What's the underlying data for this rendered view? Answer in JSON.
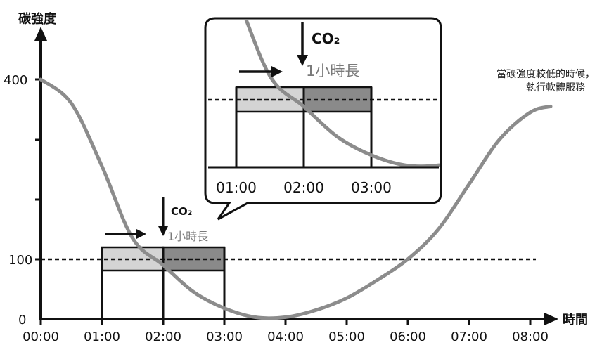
{
  "chart_data": {
    "type": "line",
    "ylabel": "碳強度",
    "xlabel": "時間",
    "y_ticks": [
      "400",
      "100",
      "0"
    ],
    "x_ticks": [
      "00:00",
      "01:00",
      "02:00",
      "03:00",
      "04:00",
      "05:00",
      "06:00",
      "07:00",
      "08:00"
    ],
    "threshold": 100,
    "series": [
      {
        "x": [
          "00:00",
          "00:30",
          "01:00",
          "01:30",
          "02:00",
          "02:30",
          "03:00",
          "03:30",
          "04:00",
          "04:30",
          "05:00",
          "05:30",
          "06:00",
          "06:30",
          "07:00",
          "07:30",
          "08:00",
          "08:20"
        ],
        "values": [
          400,
          360,
          255,
          135,
          90,
          45,
          18,
          3,
          3,
          15,
          35,
          65,
          100,
          150,
          225,
          300,
          345,
          355
        ]
      }
    ],
    "job_window": {
      "start": "01:00",
      "mid": "02:00",
      "end": "03:00"
    }
  },
  "main_chart": {
    "co2_label": "CO₂",
    "duration_label": "1小時長"
  },
  "inset": {
    "co2_label": "CO₂",
    "duration_label": "1小時長",
    "ticks": [
      "01:00",
      "02:00",
      "03:00"
    ]
  },
  "annotation": {
    "line1": "當碳強度較低的時候，",
    "line2": "執行軟體服務"
  },
  "colors": {
    "curve": "#8c8c8c",
    "bar_light": "#d4d4d4",
    "bar_dark": "#8a8a8a",
    "axis": "#111111"
  }
}
